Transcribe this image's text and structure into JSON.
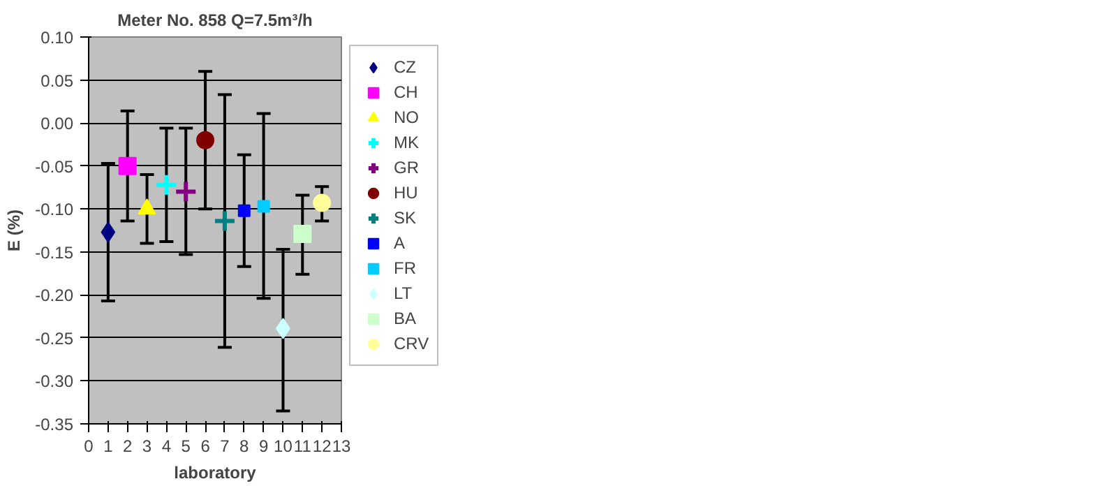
{
  "chart_data": {
    "type": "scatter",
    "title": "Meter No. 858 Q=7.5m³/h",
    "xlabel": "laboratory",
    "ylabel": "E (%)",
    "xlim": [
      0,
      13
    ],
    "xticks": [
      0,
      1,
      2,
      3,
      4,
      5,
      6,
      7,
      8,
      9,
      10,
      11,
      12,
      13
    ],
    "ylim": [
      -0.35,
      0.1
    ],
    "yticks": [
      {
        "value": -0.35,
        "label": "-0.35"
      },
      {
        "value": -0.3,
        "label": "-0.30"
      },
      {
        "value": -0.25,
        "label": "-0.25"
      },
      {
        "value": -0.2,
        "label": "-0.20"
      },
      {
        "value": -0.15,
        "label": "-0.15"
      },
      {
        "value": -0.1,
        "label": "-0.10"
      },
      {
        "value": -0.05,
        "label": "-0.05"
      },
      {
        "value": 0,
        "label": "0.00"
      },
      {
        "value": 0.05,
        "label": "0.05"
      },
      {
        "value": 0.1,
        "label": "0.10"
      }
    ],
    "grid": "y",
    "legend": "right",
    "series": [
      {
        "name": "CZ",
        "color": "#000080",
        "marker": "diamond",
        "x": [
          1
        ],
        "values": [
          -0.127
        ],
        "errors": [
          [
            -0.207,
            -0.047
          ]
        ]
      },
      {
        "name": "CH",
        "color": "#ff00ff",
        "marker": "square",
        "x": [
          2
        ],
        "values": [
          -0.05
        ],
        "errors": [
          [
            -0.114,
            0.014
          ]
        ]
      },
      {
        "name": "NO",
        "color": "#ffff00",
        "marker": "triangle",
        "x": [
          3
        ],
        "values": [
          -0.1
        ],
        "errors": [
          [
            -0.14,
            -0.06
          ]
        ]
      },
      {
        "name": "MK",
        "color": "#00ffff",
        "marker": "cross",
        "x": [
          4
        ],
        "values": [
          -0.072
        ],
        "errors": [
          [
            -0.138,
            -0.006
          ]
        ]
      },
      {
        "name": "GR",
        "color": "#800080",
        "marker": "cross",
        "x": [
          5
        ],
        "values": [
          -0.08
        ],
        "errors": [
          [
            -0.153,
            -0.006
          ]
        ]
      },
      {
        "name": "HU",
        "color": "#800000",
        "marker": "circle",
        "x": [
          6
        ],
        "values": [
          -0.02
        ],
        "errors": [
          [
            -0.1,
            0.06
          ]
        ]
      },
      {
        "name": "SK",
        "color": "#008080",
        "marker": "cross",
        "x": [
          7
        ],
        "values": [
          -0.114
        ],
        "errors": [
          [
            -0.261,
            0.033
          ]
        ]
      },
      {
        "name": "A",
        "color": "#0000ff",
        "marker": "square",
        "x": [
          8
        ],
        "values": [
          -0.102
        ],
        "errors": [
          [
            -0.167,
            -0.037
          ]
        ]
      },
      {
        "name": "FR",
        "color": "#00ccff",
        "marker": "square",
        "x": [
          9
        ],
        "values": [
          -0.097
        ],
        "errors": [
          [
            -0.204,
            0.011
          ]
        ]
      },
      {
        "name": "LT",
        "color": "#ccffff",
        "marker": "diamond",
        "x": [
          10
        ],
        "values": [
          -0.239
        ],
        "errors": [
          [
            -0.335,
            -0.147
          ]
        ]
      },
      {
        "name": "BA",
        "color": "#ccffcc",
        "marker": "square",
        "x": [
          11
        ],
        "values": [
          -0.129
        ],
        "errors": [
          [
            -0.176,
            -0.084
          ]
        ]
      },
      {
        "name": "CRV",
        "color": "#ffff99",
        "marker": "circle",
        "x": [
          12
        ],
        "values": [
          -0.093
        ],
        "errors": [
          [
            -0.114,
            -0.074
          ]
        ]
      }
    ]
  }
}
